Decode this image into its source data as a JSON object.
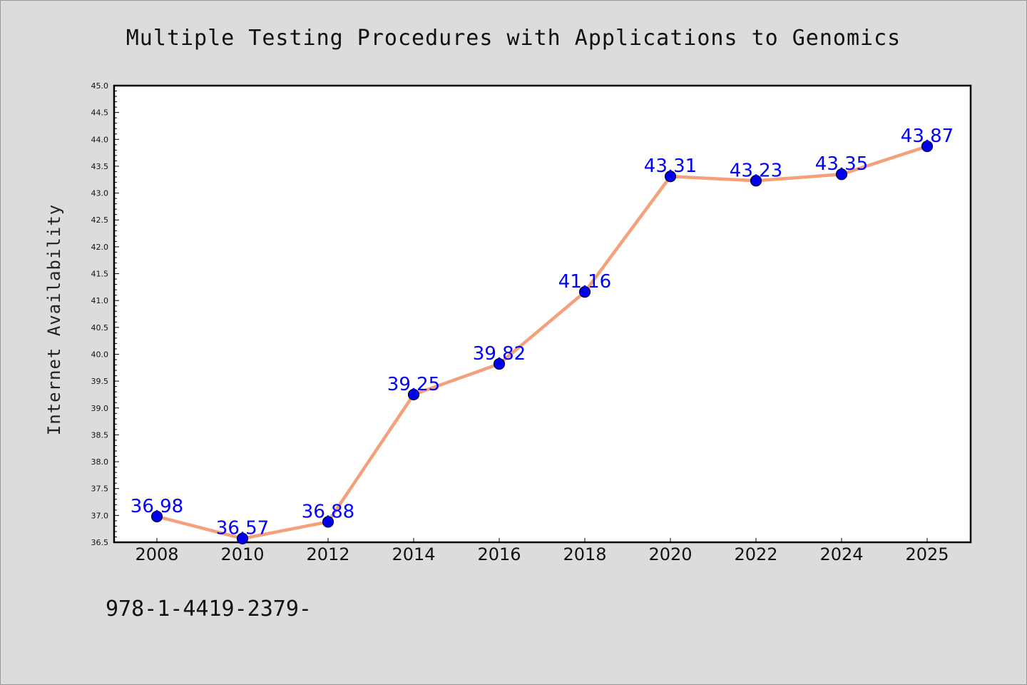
{
  "chart_data": {
    "type": "line",
    "title": "Multiple Testing Procedures with Applications to Genomics",
    "ylabel": "Internet Availability",
    "xlabel": "",
    "categories": [
      "2008",
      "2010",
      "2012",
      "2014",
      "2016",
      "2018",
      "2020",
      "2022",
      "2024",
      "2025"
    ],
    "series": [
      {
        "values": [
          36.98,
          36.57,
          36.88,
          39.25,
          39.82,
          41.16,
          43.31,
          43.23,
          43.35,
          43.87
        ],
        "data_labels": [
          "36.98",
          "36.57",
          "36.88",
          "39.25",
          "39.82",
          "41.16",
          "43.31",
          "43.23",
          "43.35",
          "43.87"
        ],
        "line_color": "#f4a07a",
        "marker_color": "#0000ee"
      }
    ],
    "ylim": [
      36.5,
      45.0
    ],
    "yticks": [
      "36.5",
      "37.0",
      "37.5",
      "38.0",
      "38.5",
      "39.0",
      "39.5",
      "40.0",
      "40.5",
      "41.0",
      "41.5",
      "42.0",
      "42.5",
      "43.0",
      "43.5",
      "44.0",
      "44.5",
      "45.0"
    ],
    "grid": false,
    "legend": "none",
    "label_color": "#0000ff",
    "background_color": "#dcdcdc",
    "plot_background": "#ffffff"
  },
  "annotation": {
    "isbn_text": "978-1-4419-2379-"
  }
}
